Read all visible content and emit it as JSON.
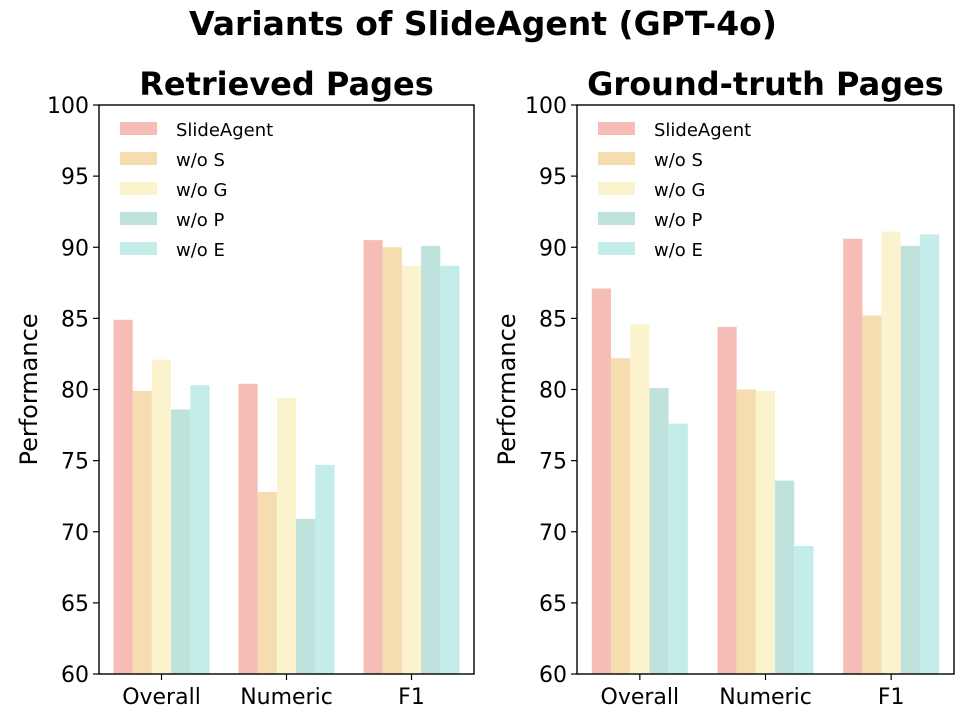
{
  "title": "Variants of SlideAgent (GPT-4o)",
  "colors": {
    "SlideAgent": "#f6bcb6",
    "w/o S": "#f5ddb0",
    "w/o G": "#fbf3cd",
    "w/o P": "#c0e2dc",
    "w/o E": "#c4ece9"
  },
  "chart_data": [
    {
      "type": "bar",
      "title": "Retrieved Pages",
      "xlabel": "",
      "ylabel": "Performance",
      "ylim": [
        60,
        100
      ],
      "yticks": [
        60,
        65,
        70,
        75,
        80,
        85,
        90,
        95,
        100
      ],
      "categories": [
        "Overall",
        "Numeric",
        "F1"
      ],
      "legend_position": "upper-left",
      "series": [
        {
          "name": "SlideAgent",
          "values": [
            84.9,
            80.4,
            90.5
          ]
        },
        {
          "name": "w/o S",
          "values": [
            79.9,
            72.8,
            90.0
          ]
        },
        {
          "name": "w/o G",
          "values": [
            82.1,
            79.4,
            88.7
          ]
        },
        {
          "name": "w/o P",
          "values": [
            78.6,
            70.9,
            90.1
          ]
        },
        {
          "name": "w/o E",
          "values": [
            80.3,
            74.7,
            88.7
          ]
        }
      ]
    },
    {
      "type": "bar",
      "title": "Ground-truth Pages",
      "xlabel": "",
      "ylabel": "Performance",
      "ylim": [
        60,
        100
      ],
      "yticks": [
        60,
        65,
        70,
        75,
        80,
        85,
        90,
        95,
        100
      ],
      "categories": [
        "Overall",
        "Numeric",
        "F1"
      ],
      "legend_position": "upper-left",
      "series": [
        {
          "name": "SlideAgent",
          "values": [
            87.1,
            84.4,
            90.6
          ]
        },
        {
          "name": "w/o S",
          "values": [
            82.2,
            80.0,
            85.2
          ]
        },
        {
          "name": "w/o G",
          "values": [
            84.6,
            79.9,
            91.1
          ]
        },
        {
          "name": "w/o P",
          "values": [
            80.1,
            73.6,
            90.1
          ]
        },
        {
          "name": "w/o E",
          "values": [
            77.6,
            69.0,
            90.9
          ]
        }
      ]
    }
  ]
}
